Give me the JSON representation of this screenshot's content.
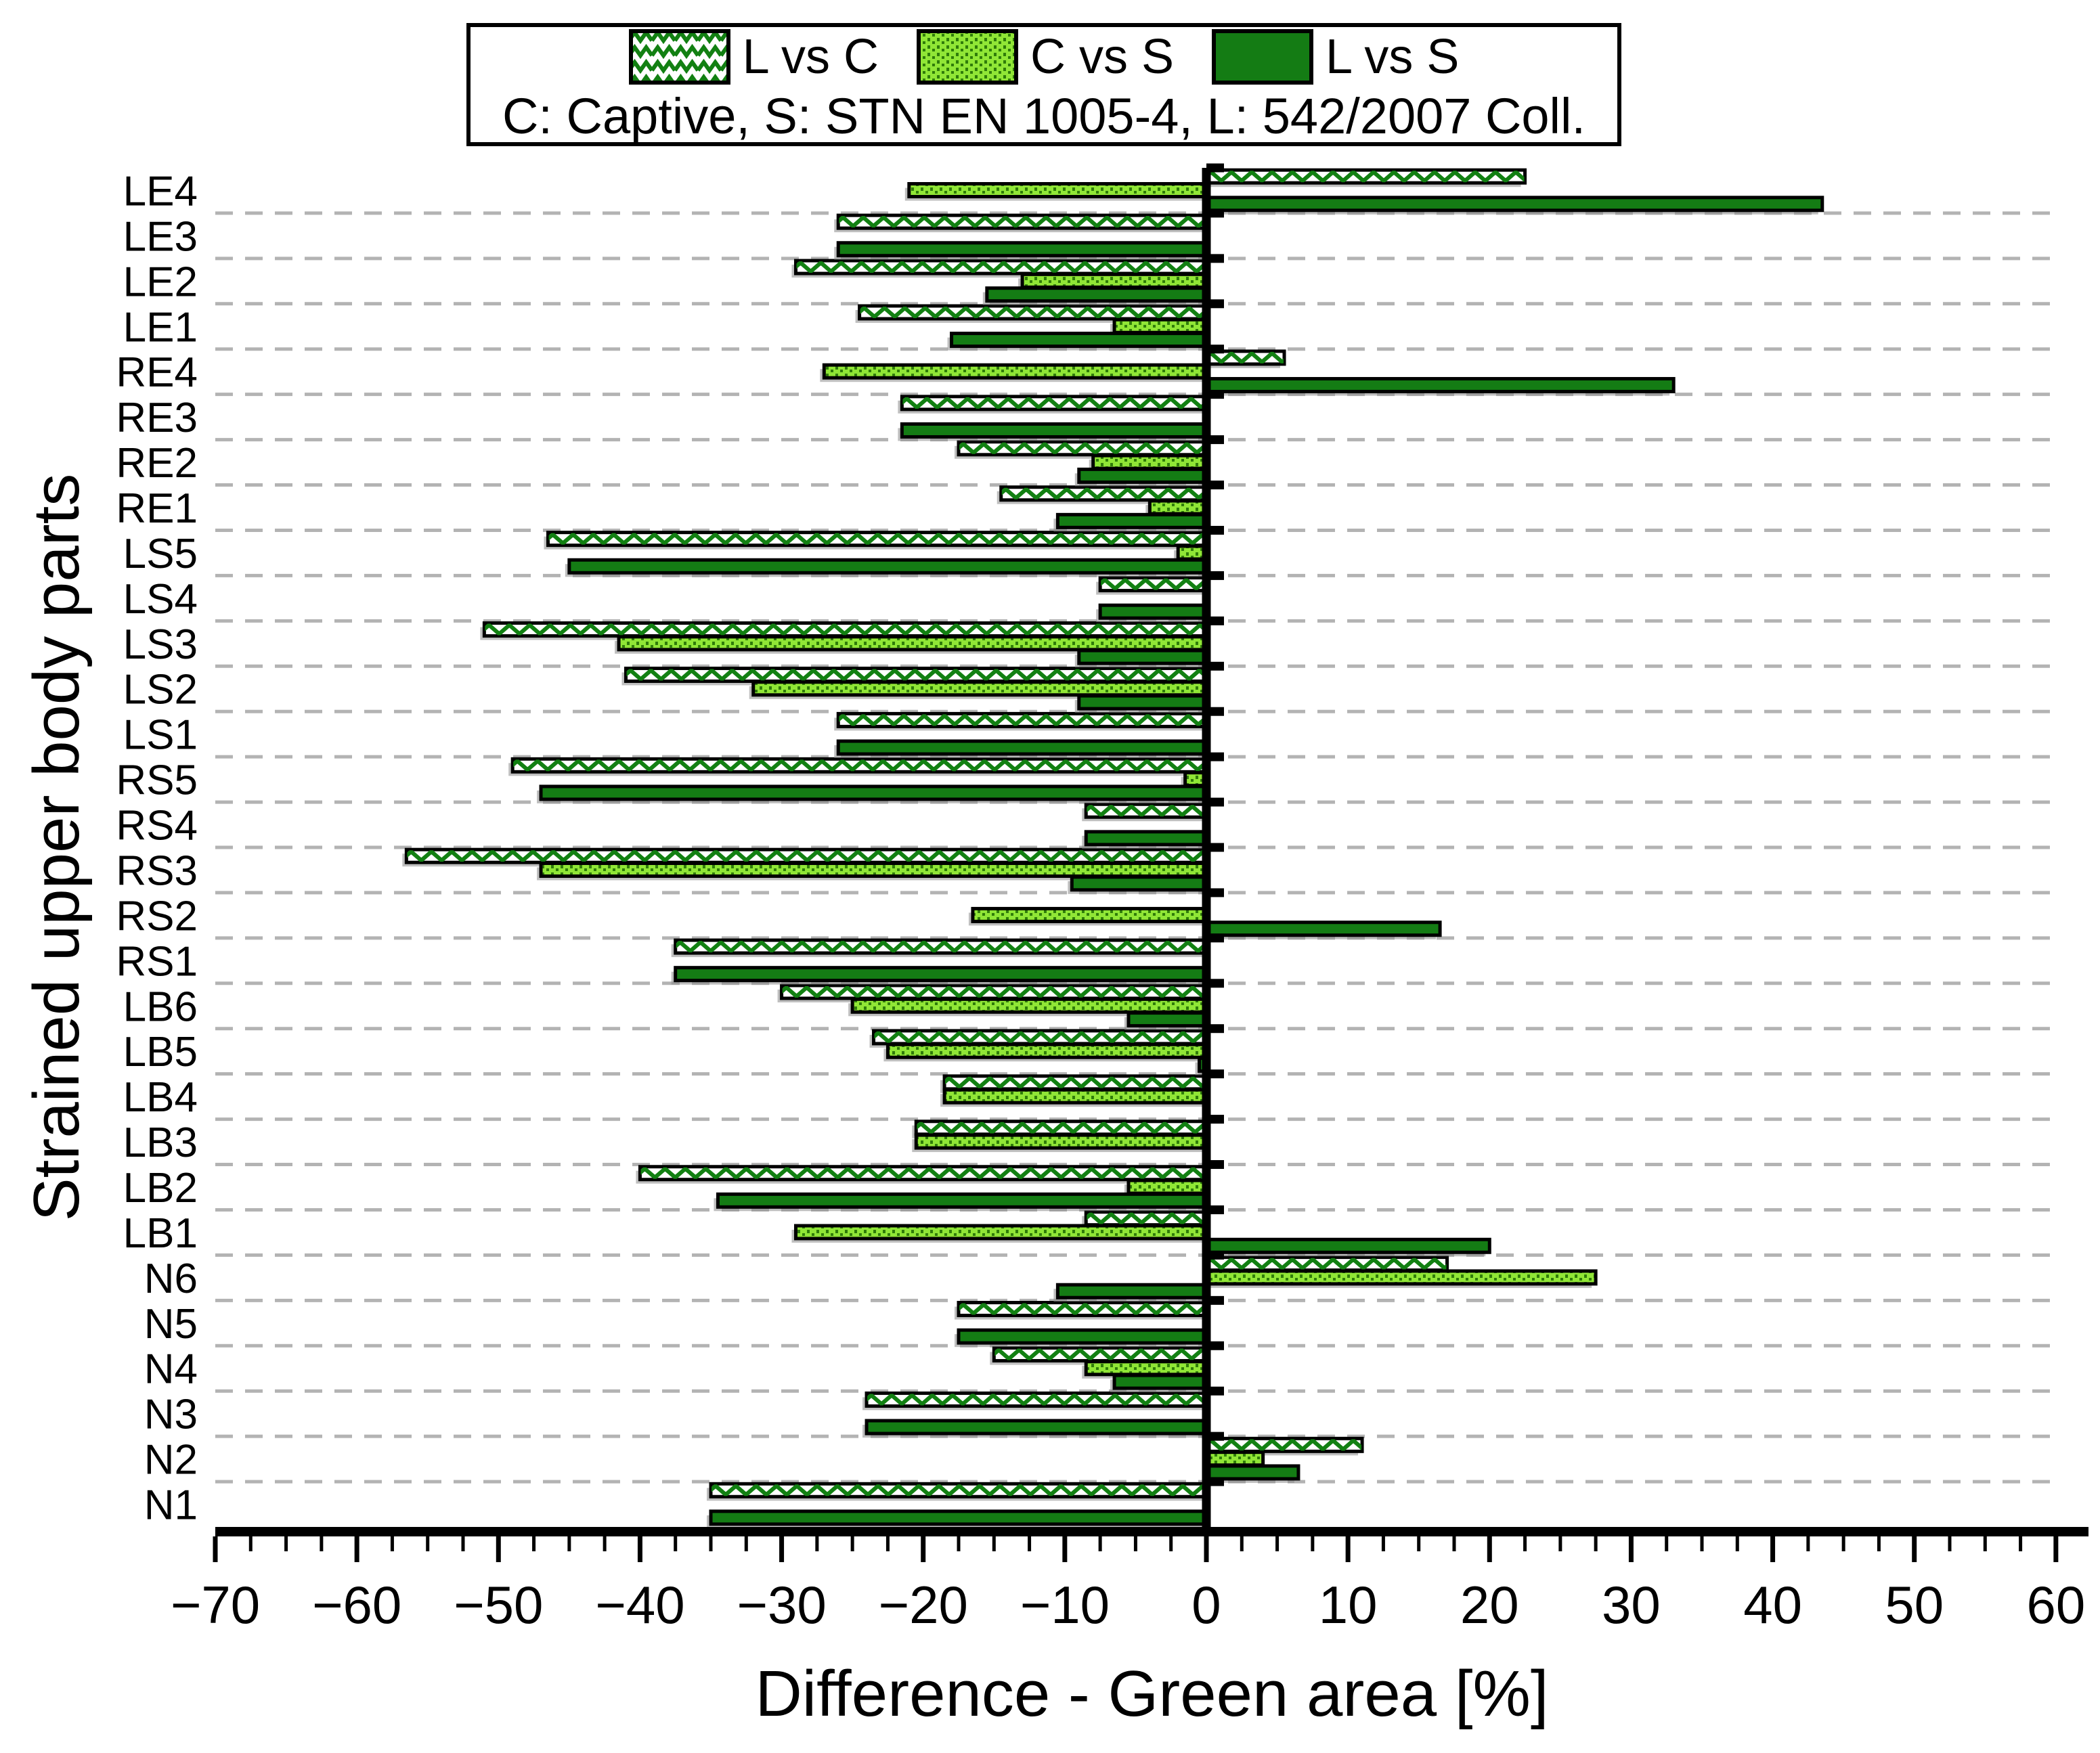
{
  "legend": {
    "items": [
      {
        "label": "L vs C",
        "style": "hatch"
      },
      {
        "label": "C vs S",
        "style": "dot"
      },
      {
        "label": "L vs S",
        "style": "solid"
      }
    ],
    "note": "C: Captive, S: STN EN 1005-4, L: 542/2007 Coll."
  },
  "axes": {
    "x_label": "Difference - Green area [%]",
    "y_label": "Strained upper body parts"
  },
  "colors": {
    "dark_green": "#147c14",
    "light_green": "#90e636",
    "dot_green": "#2f7c0a",
    "hatch_green": "#128012",
    "gridline": "#b3b3b3",
    "shadow": "#8a8a8a",
    "axis": "#000000"
  },
  "chart_data": {
    "type": "bar",
    "orientation": "horizontal",
    "title": "",
    "xlabel": "Difference - Green area [%]",
    "ylabel": "Strained upper body parts",
    "xlim": [
      -70,
      60
    ],
    "x_major_step": 10,
    "x_minor_step": 2.5,
    "grid": "dashed horizontal between categories",
    "legend_position": "top",
    "categories_order": "top-to-bottom",
    "categories": [
      "LE4",
      "LE3",
      "LE2",
      "LE1",
      "RE4",
      "RE3",
      "RE2",
      "RE1",
      "LS5",
      "LS4",
      "LS3",
      "LS2",
      "LS1",
      "RS5",
      "RS4",
      "RS3",
      "RS2",
      "RS1",
      "LB6",
      "LB5",
      "LB4",
      "LB3",
      "LB2",
      "LB1",
      "N6",
      "N5",
      "N4",
      "N3",
      "N2",
      "N1"
    ],
    "series": [
      {
        "name": "L vs C",
        "pattern": "hatch",
        "values": [
          22.5,
          -26,
          -29,
          -24.5,
          5.5,
          -21.5,
          -17.5,
          -14.5,
          -46.5,
          -7.5,
          -51,
          -41,
          -26,
          -49,
          -8.5,
          -56.5,
          0,
          -37.5,
          -30,
          -23.5,
          -18.5,
          -20.5,
          -40,
          -8.5,
          17,
          -17.5,
          -15,
          -24,
          11,
          -35
        ]
      },
      {
        "name": "C vs S",
        "pattern": "dot",
        "values": [
          -21,
          0,
          -13,
          -6.5,
          -27,
          0,
          -8,
          -4,
          -2,
          0,
          -41.5,
          -32,
          0,
          -1.5,
          0,
          -47,
          -16.5,
          0,
          -25,
          -22.5,
          -18.5,
          -20.5,
          -5.5,
          -29,
          27.5,
          0,
          -8.5,
          0,
          4,
          0
        ]
      },
      {
        "name": "L vs S",
        "pattern": "solid",
        "values": [
          43.5,
          -26,
          -15.5,
          -18,
          33,
          -21.5,
          -9,
          -10.5,
          -45,
          -7.5,
          -9,
          -9,
          -26,
          -47,
          -8.5,
          -9.5,
          16.5,
          -37.5,
          -5.5,
          -0.5,
          0,
          0,
          -34.5,
          20,
          -10.5,
          -17.5,
          -6.5,
          -24,
          6.5,
          -35
        ]
      }
    ],
    "x_tick_labels": [
      "−70",
      "−60",
      "−50",
      "−40",
      "−30",
      "−20",
      "−10",
      "0",
      "10",
      "20",
      "30",
      "40",
      "50",
      "60"
    ]
  }
}
